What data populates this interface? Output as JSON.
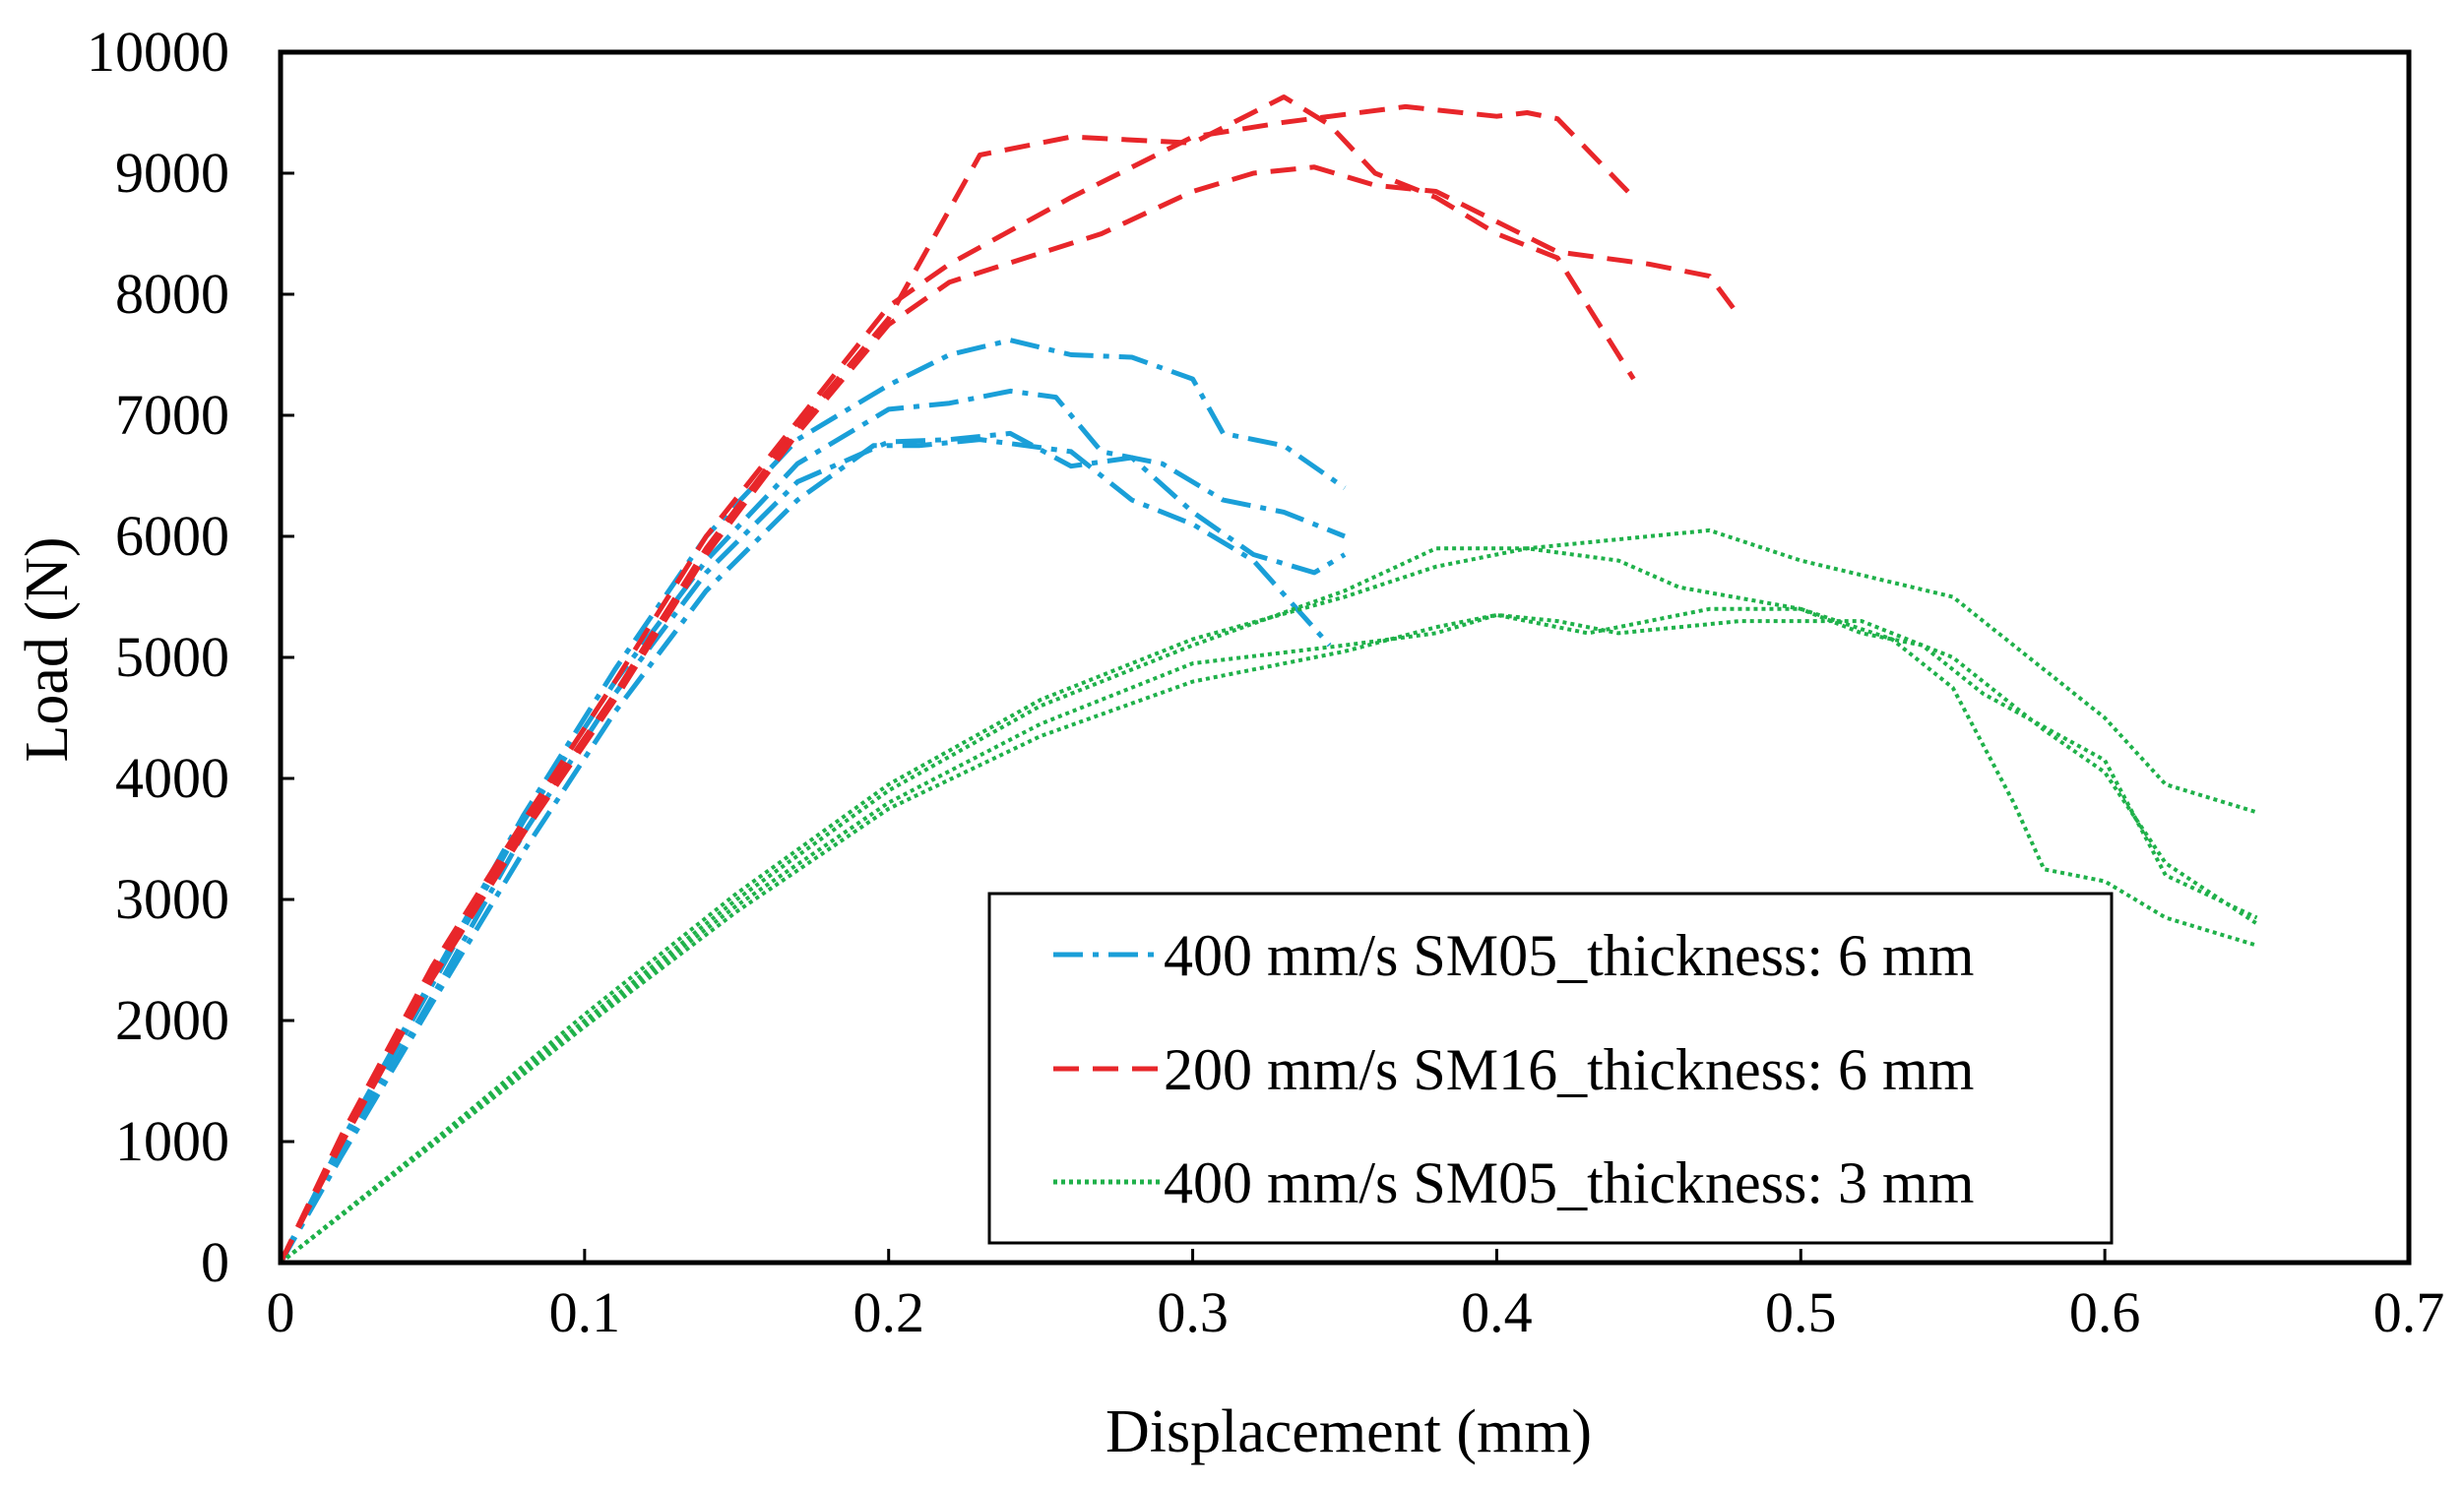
{
  "chart_data": {
    "type": "line",
    "title": "",
    "xlabel": "Displacement (mm)",
    "ylabel": "Load (N)",
    "xlim": [
      0,
      0.7
    ],
    "ylim": [
      0,
      10000
    ],
    "xticks": [
      0,
      0.1,
      0.2,
      0.3,
      0.4,
      0.5,
      0.6,
      0.7
    ],
    "xtick_labels": [
      "0",
      "0.1",
      "0.2",
      "0.3",
      "0.4",
      "0.5",
      "0.6",
      "0.7"
    ],
    "yticks": [
      0,
      1000,
      2000,
      3000,
      4000,
      5000,
      6000,
      7000,
      8000,
      9000,
      10000
    ],
    "ytick_labels": [
      "0",
      "1000",
      "2000",
      "3000",
      "4000",
      "5000",
      "6000",
      "7000",
      "8000",
      "9000",
      "10000"
    ],
    "grid": false,
    "legend_position": "bottom-right",
    "groups": [
      {
        "name": "400 mm/s SM05_thickness: 6 mm",
        "color": "#1a9fd8",
        "style": "dashdot",
        "series": [
          {
            "x": [
              0,
              0.02,
              0.05,
              0.08,
              0.11,
              0.14,
              0.17,
              0.2,
              0.22,
              0.24,
              0.26,
              0.28,
              0.3,
              0.31,
              0.33,
              0.35
            ],
            "y": [
              0,
              1000,
              2350,
              3700,
              4900,
              6000,
              6800,
              7250,
              7500,
              7620,
              7500,
              7480,
              7300,
              6850,
              6750,
              6400
            ]
          },
          {
            "x": [
              0,
              0.02,
              0.05,
              0.08,
              0.11,
              0.14,
              0.17,
              0.2,
              0.22,
              0.24,
              0.255,
              0.27,
              0.29,
              0.31,
              0.33,
              0.35
            ],
            "y": [
              0,
              950,
              2300,
              3650,
              4800,
              5800,
              6600,
              7050,
              7100,
              7200,
              7150,
              6700,
              6600,
              6300,
              6200,
              6000
            ]
          },
          {
            "x": [
              0,
              0.02,
              0.05,
              0.08,
              0.11,
              0.14,
              0.17,
              0.2,
              0.22,
              0.24,
              0.26,
              0.28,
              0.3,
              0.32,
              0.34,
              0.35
            ],
            "y": [
              0,
              900,
              2200,
              3550,
              4700,
              5700,
              6450,
              6780,
              6800,
              6850,
              6580,
              6650,
              6200,
              5850,
              5700,
              5850
            ]
          },
          {
            "x": [
              0,
              0.02,
              0.05,
              0.08,
              0.11,
              0.14,
              0.17,
              0.195,
              0.21,
              0.23,
              0.26,
              0.28,
              0.3,
              0.32,
              0.345
            ],
            "y": [
              0,
              880,
              2150,
              3400,
              4550,
              5550,
              6300,
              6750,
              6750,
              6800,
              6700,
              6300,
              6100,
              5800,
              5100
            ]
          }
        ]
      },
      {
        "name": "200 mm/s SM16_thickness: 6 mm",
        "color": "#e8262a",
        "style": "dashed",
        "series": [
          {
            "x": [
              0,
              0.02,
              0.05,
              0.08,
              0.11,
              0.14,
              0.17,
              0.2,
              0.23,
              0.26,
              0.3,
              0.33,
              0.345,
              0.36,
              0.38,
              0.4,
              0.42,
              0.445
            ],
            "y": [
              0,
              1000,
              2400,
              3600,
              4700,
              5900,
              6900,
              7800,
              9150,
              9300,
              9250,
              9630,
              9400,
              9000,
              8800,
              8500,
              8300,
              7300
            ]
          },
          {
            "x": [
              0,
              0.02,
              0.05,
              0.08,
              0.11,
              0.14,
              0.17,
              0.2,
              0.22,
              0.26,
              0.3,
              0.33,
              0.37,
              0.4,
              0.41,
              0.42,
              0.445
            ],
            "y": [
              0,
              1050,
              2450,
              3650,
              4800,
              6000,
              6950,
              7900,
              8250,
              8800,
              9300,
              9420,
              9550,
              9470,
              9500,
              9450,
              8800
            ]
          },
          {
            "x": [
              0,
              0.02,
              0.05,
              0.08,
              0.11,
              0.14,
              0.17,
              0.2,
              0.22,
              0.27,
              0.3,
              0.32,
              0.34,
              0.36,
              0.38,
              0.4,
              0.42,
              0.45,
              0.47,
              0.478
            ],
            "y": [
              0,
              980,
              2350,
              3550,
              4650,
              5850,
              6850,
              7750,
              8100,
              8500,
              8850,
              9000,
              9050,
              8900,
              8850,
              8600,
              8350,
              8250,
              8150,
              7880
            ]
          }
        ]
      },
      {
        "name": "400 mm/s SM05_thickness: 3 mm",
        "color": "#1fb14a",
        "style": "dotted",
        "series": [
          {
            "x": [
              0,
              0.05,
              0.1,
              0.15,
              0.2,
              0.25,
              0.3,
              0.35,
              0.38,
              0.41,
              0.45,
              0.47,
              0.5,
              0.55,
              0.6,
              0.62,
              0.65
            ],
            "y": [
              0,
              1000,
              2050,
              3050,
              3950,
              4650,
              5150,
              5500,
              5750,
              5900,
              6000,
              6050,
              5800,
              5500,
              4500,
              3950,
              3720
            ]
          },
          {
            "x": [
              0,
              0.05,
              0.1,
              0.15,
              0.2,
              0.25,
              0.3,
              0.35,
              0.38,
              0.41,
              0.44,
              0.46,
              0.5,
              0.52,
              0.54,
              0.56,
              0.6,
              0.62,
              0.65
            ],
            "y": [
              0,
              1000,
              2000,
              3000,
              3900,
              4600,
              5100,
              5550,
              5900,
              5900,
              5800,
              5580,
              5400,
              5200,
              5100,
              4700,
              4150,
              3200,
              2850
            ]
          },
          {
            "x": [
              0,
              0.05,
              0.1,
              0.15,
              0.2,
              0.25,
              0.3,
              0.35,
              0.38,
              0.4,
              0.42,
              0.44,
              0.48,
              0.52,
              0.55,
              0.58,
              0.6,
              0.62,
              0.65
            ],
            "y": [
              0,
              980,
              1980,
              2950,
              3800,
              4450,
              4950,
              5100,
              5200,
              5350,
              5300,
              5200,
              5300,
              5300,
              5000,
              4400,
              4050,
              3300,
              2800
            ]
          },
          {
            "x": [
              0,
              0.05,
              0.1,
              0.15,
              0.2,
              0.25,
              0.3,
              0.35,
              0.38,
              0.4,
              0.43,
              0.47,
              0.5,
              0.53,
              0.55,
              0.57,
              0.58,
              0.6,
              0.62,
              0.65
            ],
            "y": [
              0,
              970,
              1950,
              2900,
              3750,
              4350,
              4800,
              5050,
              5250,
              5350,
              5200,
              5400,
              5400,
              5150,
              4750,
              3800,
              3250,
              3150,
              2850,
              2620
            ]
          }
        ]
      }
    ]
  }
}
